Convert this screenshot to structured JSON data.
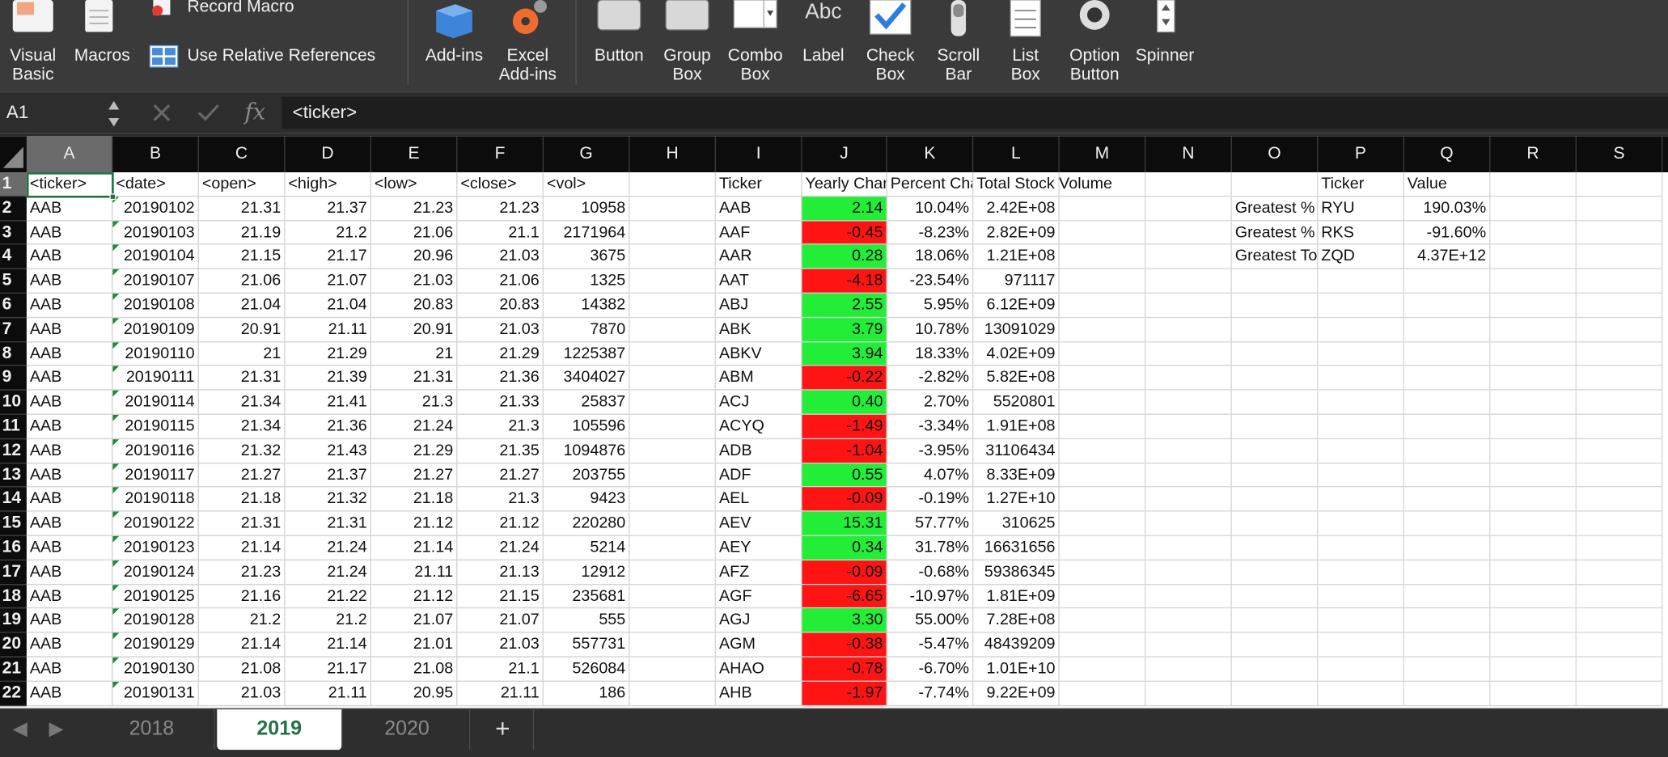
{
  "ribbon": {
    "visual_basic": "Visual\nBasic",
    "macros": "Macros",
    "record_macro": "Record Macro",
    "use_relative": "Use Relative References",
    "add_ins": "Add-ins",
    "excel_add_ins": "Excel\nAdd-ins",
    "button": "Button",
    "group_box": "Group\nBox",
    "combo_box": "Combo\nBox",
    "label": "Label",
    "label_icon_text": "Abc",
    "check_box": "Check\nBox",
    "scroll_bar": "Scroll\nBar",
    "list_box": "List\nBox",
    "option_button": "Option\nButton",
    "spinner": "Spinner"
  },
  "formula_bar": {
    "name_box": "A1",
    "fx": "fx",
    "content": "<ticker>"
  },
  "columns": [
    "A",
    "B",
    "C",
    "D",
    "E",
    "F",
    "G",
    "H",
    "I",
    "J",
    "K",
    "L",
    "M",
    "N",
    "O",
    "P",
    "Q",
    "R",
    "S"
  ],
  "rows": [
    "1",
    "2",
    "3",
    "4",
    "5",
    "6",
    "7",
    "8",
    "9",
    "10",
    "11",
    "12",
    "13",
    "14",
    "15",
    "16",
    "17",
    "18",
    "19",
    "20",
    "21",
    "22"
  ],
  "headers": {
    "A": "<ticker>",
    "B": "<date>",
    "C": "<open>",
    "D": "<high>",
    "E": "<low>",
    "F": "<close>",
    "G": "<vol>",
    "I": "Ticker",
    "J": "Yearly Change",
    "K": "Percent Change",
    "L": "Total Stock Volume",
    "P": "Ticker",
    "Q": "Value"
  },
  "raw": [
    [
      "AAB",
      "20190102",
      "21.31",
      "21.37",
      "21.23",
      "21.23",
      "10958"
    ],
    [
      "AAB",
      "20190103",
      "21.19",
      "21.2",
      "21.06",
      "21.1",
      "2171964"
    ],
    [
      "AAB",
      "20190104",
      "21.15",
      "21.17",
      "20.96",
      "21.03",
      "3675"
    ],
    [
      "AAB",
      "20190107",
      "21.06",
      "21.07",
      "21.03",
      "21.06",
      "1325"
    ],
    [
      "AAB",
      "20190108",
      "21.04",
      "21.04",
      "20.83",
      "20.83",
      "14382"
    ],
    [
      "AAB",
      "20190109",
      "20.91",
      "21.11",
      "20.91",
      "21.03",
      "7870"
    ],
    [
      "AAB",
      "20190110",
      "21",
      "21.29",
      "21",
      "21.29",
      "1225387"
    ],
    [
      "AAB",
      "20190111",
      "21.31",
      "21.39",
      "21.31",
      "21.36",
      "3404027"
    ],
    [
      "AAB",
      "20190114",
      "21.34",
      "21.41",
      "21.3",
      "21.33",
      "25837"
    ],
    [
      "AAB",
      "20190115",
      "21.34",
      "21.36",
      "21.24",
      "21.3",
      "105596"
    ],
    [
      "AAB",
      "20190116",
      "21.32",
      "21.43",
      "21.29",
      "21.35",
      "1094876"
    ],
    [
      "AAB",
      "20190117",
      "21.27",
      "21.37",
      "21.27",
      "21.27",
      "203755"
    ],
    [
      "AAB",
      "20190118",
      "21.18",
      "21.32",
      "21.18",
      "21.3",
      "9423"
    ],
    [
      "AAB",
      "20190122",
      "21.31",
      "21.31",
      "21.12",
      "21.12",
      "220280"
    ],
    [
      "AAB",
      "20190123",
      "21.14",
      "21.24",
      "21.14",
      "21.24",
      "5214"
    ],
    [
      "AAB",
      "20190124",
      "21.23",
      "21.24",
      "21.11",
      "21.13",
      "12912"
    ],
    [
      "AAB",
      "20190125",
      "21.16",
      "21.22",
      "21.12",
      "21.15",
      "235681"
    ],
    [
      "AAB",
      "20190128",
      "21.2",
      "21.2",
      "21.07",
      "21.07",
      "555"
    ],
    [
      "AAB",
      "20190129",
      "21.14",
      "21.14",
      "21.01",
      "21.03",
      "557731"
    ],
    [
      "AAB",
      "20190130",
      "21.08",
      "21.17",
      "21.08",
      "21.1",
      "526084"
    ],
    [
      "AAB",
      "20190131",
      "21.03",
      "21.11",
      "20.95",
      "21.11",
      "186"
    ]
  ],
  "summary": [
    [
      "AAB",
      "2.14",
      "10.04%",
      "2.42E+08",
      "up"
    ],
    [
      "AAF",
      "-0.45",
      "-8.23%",
      "2.82E+09",
      "down"
    ],
    [
      "AAR",
      "0.28",
      "18.06%",
      "1.21E+08",
      "up"
    ],
    [
      "AAT",
      "-4.18",
      "-23.54%",
      "971117",
      "down"
    ],
    [
      "ABJ",
      "2.55",
      "5.95%",
      "6.12E+09",
      "up"
    ],
    [
      "ABK",
      "3.79",
      "10.78%",
      "13091029",
      "up"
    ],
    [
      "ABKV",
      "3.94",
      "18.33%",
      "4.02E+09",
      "up"
    ],
    [
      "ABM",
      "-0.22",
      "-2.82%",
      "5.82E+08",
      "down"
    ],
    [
      "ACJ",
      "0.40",
      "2.70%",
      "5520801",
      "up"
    ],
    [
      "ACYQ",
      "-1.49",
      "-3.34%",
      "1.91E+08",
      "down"
    ],
    [
      "ADB",
      "-1.04",
      "-3.95%",
      "31106434",
      "down"
    ],
    [
      "ADF",
      "0.55",
      "4.07%",
      "8.33E+09",
      "up"
    ],
    [
      "AEL",
      "-0.09",
      "-0.19%",
      "1.27E+10",
      "down"
    ],
    [
      "AEV",
      "15.31",
      "57.77%",
      "310625",
      "up"
    ],
    [
      "AEY",
      "0.34",
      "31.78%",
      "16631656",
      "up"
    ],
    [
      "AFZ",
      "-0.09",
      "-0.68%",
      "59386345",
      "down"
    ],
    [
      "AGF",
      "-6.65",
      "-10.97%",
      "1.81E+09",
      "down"
    ],
    [
      "AGJ",
      "3.30",
      "55.00%",
      "7.28E+08",
      "up"
    ],
    [
      "AGM",
      "-0.38",
      "-5.47%",
      "48439209",
      "down"
    ],
    [
      "AHAO",
      "-0.78",
      "-6.70%",
      "1.01E+10",
      "down"
    ],
    [
      "AHB",
      "-1.97",
      "-7.74%",
      "9.22E+09",
      "down"
    ]
  ],
  "greatest": [
    [
      "Greatest % Increase",
      "RYU",
      "190.03%"
    ],
    [
      "Greatest % Decrease",
      "RKS",
      "-91.60%"
    ],
    [
      "Greatest Total Volume",
      "ZQD",
      "4.37E+12"
    ]
  ],
  "sheets": [
    "2018",
    "2019",
    "2020"
  ],
  "active_sheet": "2019",
  "add_sheet": "+",
  "colors": {
    "positive": "#22ee38",
    "negative": "#ff1414",
    "accent": "#217346"
  }
}
